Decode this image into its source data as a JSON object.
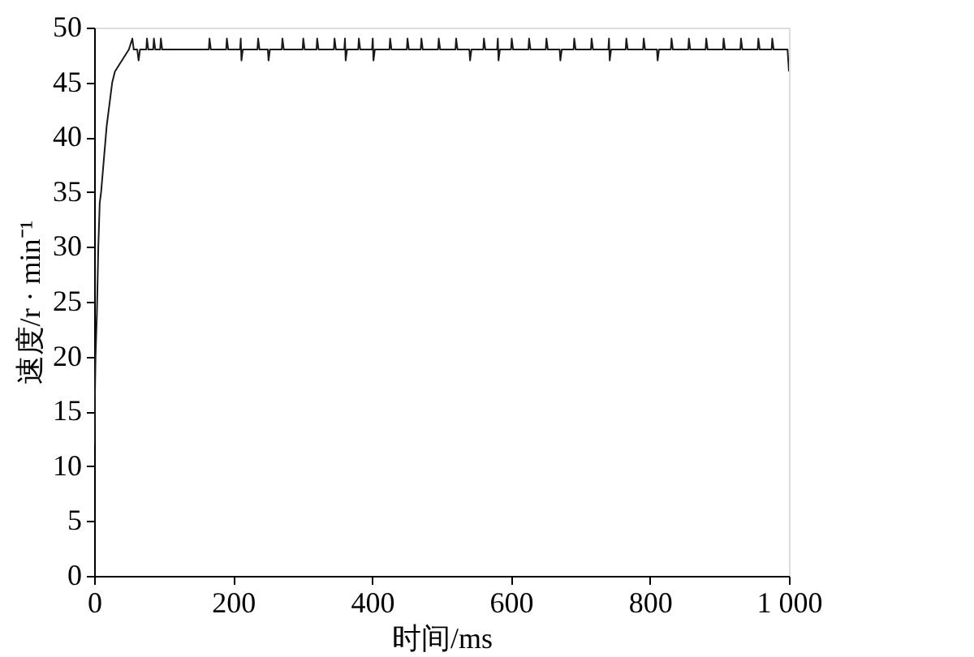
{
  "chart_data": {
    "type": "line",
    "xlabel": "时间/ms",
    "ylabel": "速度/r · min⁻¹",
    "xlim": [
      0,
      1000
    ],
    "xticks": [
      0,
      200,
      400,
      600,
      800,
      {
        "value": 1000,
        "label": "1 000"
      }
    ],
    "ylim": [
      0,
      50
    ],
    "yticks": [
      0,
      5,
      10,
      15,
      20,
      25,
      30,
      35,
      40,
      45,
      50
    ],
    "grid": false,
    "marker": "none",
    "line_style": "solid",
    "series": [
      {
        "color": "#1a1a1a",
        "x": [
          0,
          2,
          4,
          6,
          8,
          10,
          14,
          18,
          22,
          26,
          30,
          35,
          40,
          45,
          50,
          55,
          57,
          62,
          64,
          66,
          75,
          76,
          78,
          85,
          86,
          88,
          95,
          96,
          98,
          165,
          166,
          168,
          190,
          191,
          193,
          210,
          211,
          212,
          214,
          235,
          236,
          238,
          250,
          251,
          253,
          270,
          271,
          273,
          300,
          301,
          303,
          320,
          321,
          323,
          345,
          346,
          348,
          360,
          361,
          362,
          364,
          380,
          381,
          383,
          400,
          401,
          402,
          404,
          425,
          426,
          428,
          450,
          451,
          453,
          470,
          471,
          473,
          495,
          496,
          498,
          520,
          521,
          523,
          540,
          541,
          543,
          560,
          561,
          563,
          580,
          581,
          582,
          584,
          600,
          601,
          603,
          625,
          626,
          628,
          650,
          651,
          653,
          670,
          671,
          673,
          690,
          691,
          693,
          715,
          716,
          718,
          740,
          741,
          742,
          744,
          765,
          766,
          768,
          790,
          791,
          793,
          810,
          811,
          813,
          830,
          831,
          833,
          855,
          856,
          858,
          880,
          881,
          883,
          905,
          906,
          908,
          930,
          931,
          933,
          955,
          956,
          958,
          975,
          976,
          978,
          998,
          1000
        ],
        "values": [
          12,
          20,
          24,
          30,
          34,
          35,
          38,
          41,
          43,
          45,
          46,
          46.5,
          47,
          47.5,
          48,
          49,
          48,
          48,
          47,
          48,
          48,
          49,
          48,
          48,
          49,
          48,
          48,
          49,
          48,
          48,
          49,
          48,
          48,
          49,
          48,
          48,
          49,
          47,
          48,
          48,
          49,
          48,
          48,
          47,
          48,
          48,
          49,
          48,
          48,
          49,
          48,
          48,
          49,
          48,
          48,
          49,
          48,
          48,
          49,
          47,
          48,
          48,
          49,
          48,
          48,
          49,
          47,
          48,
          48,
          49,
          48,
          48,
          49,
          48,
          48,
          49,
          48,
          48,
          49,
          48,
          48,
          49,
          48,
          48,
          47,
          48,
          48,
          49,
          48,
          48,
          49,
          47,
          48,
          48,
          49,
          48,
          48,
          49,
          48,
          48,
          49,
          48,
          48,
          47,
          48,
          48,
          49,
          48,
          48,
          49,
          48,
          48,
          49,
          47,
          48,
          48,
          49,
          48,
          48,
          49,
          48,
          48,
          47,
          48,
          48,
          49,
          48,
          48,
          49,
          48,
          48,
          49,
          48,
          48,
          49,
          48,
          48,
          49,
          48,
          48,
          49,
          48,
          48,
          49,
          48,
          48,
          46
        ]
      }
    ]
  }
}
